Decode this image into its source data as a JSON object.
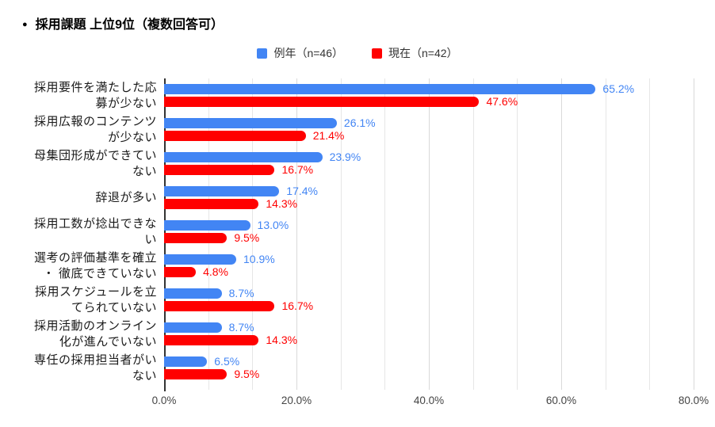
{
  "title": {
    "bullet": "●",
    "text": "採用課題 上位9位（複数回答可）"
  },
  "legend": {
    "position": "top",
    "items": [
      {
        "label": "例年（n=46）",
        "color": "#4285F4"
      },
      {
        "label": "現在（n=42）",
        "color": "#FF0000"
      }
    ]
  },
  "chart_data": {
    "type": "bar",
    "orientation": "horizontal",
    "title": "採用課題 上位9位（複数回答可）",
    "categories": [
      "採用要件を満たした応募が少ない",
      "採用広報のコンテンツが少ない",
      "母集団形成ができていない",
      "辞退が多い",
      "採用工数が捻出できない",
      "選考の評価基準を確立・徹底できていない",
      "採用スケジュールを立てられていない",
      "採用活動のオンライン化が進んでいない",
      "専任の採用担当者がいない"
    ],
    "category_display_lines": [
      [
        "採用要件を満たした応",
        "募が少ない"
      ],
      [
        "採用広報のコンテンツ",
        "が少ない"
      ],
      [
        "母集団形成ができてい",
        "ない"
      ],
      [
        "辞退が多い"
      ],
      [
        "採用工数が捻出できな",
        "い"
      ],
      [
        "選考の評価基準を確立",
        "・ 徹底できていない"
      ],
      [
        "採用スケジュールを立",
        "てられていない"
      ],
      [
        "採用活動のオンライン",
        "化が進んでいない"
      ],
      [
        "専任の採用担当者がい",
        "ない"
      ]
    ],
    "series": [
      {
        "name": "例年（n=46）",
        "color": "#4285F4",
        "values": [
          65.2,
          26.1,
          23.9,
          17.4,
          13.0,
          10.9,
          8.7,
          8.7,
          6.5
        ],
        "labels": [
          "65.2%",
          "26.1%",
          "23.9%",
          "17.4%",
          "13.0%",
          "10.9%",
          "8.7%",
          "8.7%",
          "6.5%"
        ]
      },
      {
        "name": "現在（n=42）",
        "color": "#FF0000",
        "values": [
          47.6,
          21.4,
          16.7,
          14.3,
          9.5,
          4.8,
          16.7,
          14.3,
          9.5
        ],
        "labels": [
          "47.6%",
          "21.4%",
          "16.7%",
          "14.3%",
          "9.5%",
          "4.8%",
          "16.7%",
          "14.3%",
          "9.5%"
        ]
      }
    ],
    "xlim": [
      0,
      80
    ],
    "x_ticks": [
      "0.0%",
      "20.0%",
      "40.0%",
      "60.0%",
      "80.0%"
    ],
    "minor_gridline_divisions": 12,
    "grid": "vertical",
    "legend_position": "top",
    "colors": {
      "minor_gridline": "#e6e6e6",
      "major_gridline": "#d9d9d9",
      "axis_line": "#333333",
      "tick_label": "#444444",
      "category_label": "#1a1a1a"
    }
  }
}
